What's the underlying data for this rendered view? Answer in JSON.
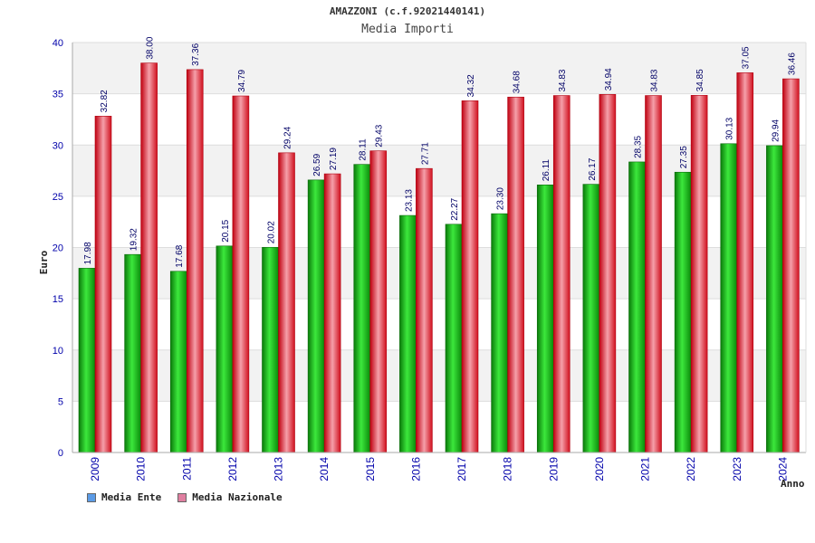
{
  "header": {
    "title": "AMAZZONI (c.f.92021440141)",
    "subtitle": "Media Importi"
  },
  "colors": {
    "ente": "#14b314",
    "nazionale": "#e8202e",
    "legend_ente": "#5b9be6",
    "legend_nazionale": "#e07fa0",
    "axis_text": "#0000aa"
  },
  "legend": {
    "ente_label": "Media Ente",
    "nazionale_label": "Media Nazionale"
  },
  "chart_data": {
    "type": "bar",
    "ylabel": "Euro",
    "xlabel": "Anno",
    "ylim": [
      0,
      40
    ],
    "yticks": [
      0,
      5,
      10,
      15,
      20,
      25,
      30,
      35,
      40
    ],
    "grid": true,
    "categories": [
      "2009",
      "2010",
      "2011",
      "2012",
      "2013",
      "2014",
      "2015",
      "2016",
      "2017",
      "2018",
      "2019",
      "2020",
      "2021",
      "2022",
      "2023",
      "2024"
    ],
    "series": [
      {
        "name": "Media Ente",
        "values": [
          17.98,
          19.32,
          17.68,
          20.15,
          20.02,
          26.59,
          28.11,
          23.13,
          22.27,
          23.3,
          26.11,
          26.17,
          28.35,
          27.35,
          30.13,
          29.94
        ],
        "labels": [
          "17.98",
          "19.32",
          "17.68",
          "20.15",
          "20.02",
          "26.59",
          "28.11",
          "23.13",
          "22.27",
          "23.30",
          "26.11",
          "26.17",
          "28.35",
          "27.35",
          "30.13",
          "29.94"
        ]
      },
      {
        "name": "Media Nazionale",
        "values": [
          32.82,
          38.0,
          37.36,
          34.79,
          29.24,
          27.19,
          29.43,
          27.71,
          34.32,
          34.68,
          34.83,
          34.94,
          34.83,
          34.85,
          37.05,
          36.46
        ],
        "labels": [
          "32.82",
          "38.00",
          "37.36",
          "34.79",
          "29.24",
          "27.19",
          "29.43",
          "27.71",
          "34.32",
          "34.68",
          "34.83",
          "34.94",
          "34.83",
          "34.85",
          "37.05",
          "36.46"
        ]
      }
    ]
  }
}
